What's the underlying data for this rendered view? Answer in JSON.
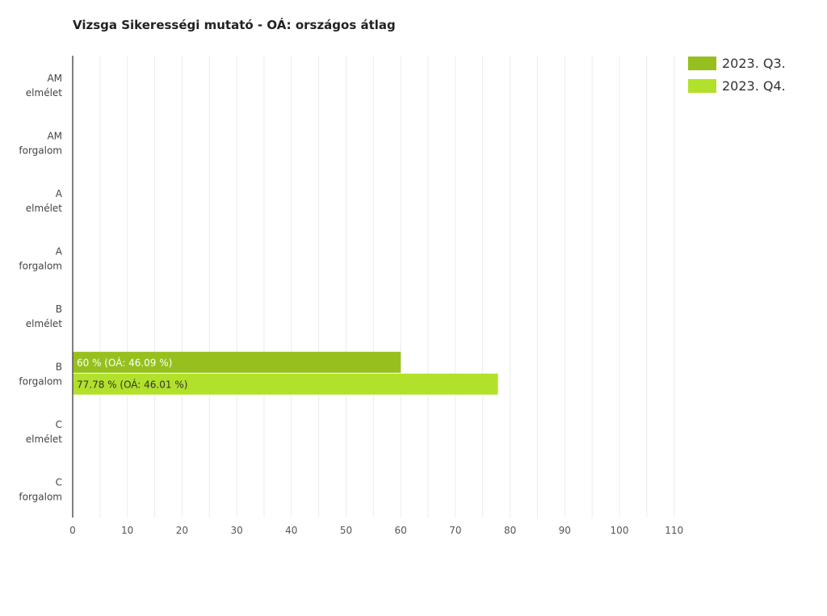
{
  "chart_data": {
    "type": "bar",
    "orientation": "horizontal",
    "title": "Vizsga Sikerességi mutató - OÁ: országos átlag",
    "categories": [
      [
        "AM",
        "elmélet"
      ],
      [
        "AM",
        "forgalom"
      ],
      [
        "A",
        "elmélet"
      ],
      [
        "A",
        "forgalom"
      ],
      [
        "B",
        "elmélet"
      ],
      [
        "B",
        "forgalom"
      ],
      [
        "C",
        "elmélet"
      ],
      [
        "C",
        "forgalom"
      ]
    ],
    "series": [
      {
        "name": "2023. Q3.",
        "color": "#97c01e",
        "label_color": "#ffffff",
        "values": [
          null,
          null,
          null,
          null,
          null,
          60,
          null,
          null
        ],
        "labels": [
          null,
          null,
          null,
          null,
          null,
          "60 % (OÁ: 46.09 %)",
          null,
          null
        ]
      },
      {
        "name": "2023. Q4.",
        "color": "#b1e12a",
        "label_color": "#333333",
        "values": [
          null,
          null,
          null,
          null,
          null,
          77.78,
          null,
          null
        ],
        "labels": [
          null,
          null,
          null,
          null,
          null,
          "77.78 % (OÁ: 46.01 %)",
          null,
          null
        ]
      }
    ],
    "xlim": [
      0,
      110
    ],
    "xticks": [
      0,
      10,
      20,
      30,
      40,
      50,
      60,
      70,
      80,
      90,
      100,
      110
    ],
    "minor_grid_step": 5,
    "grid": true,
    "legend_position": "top-right"
  }
}
